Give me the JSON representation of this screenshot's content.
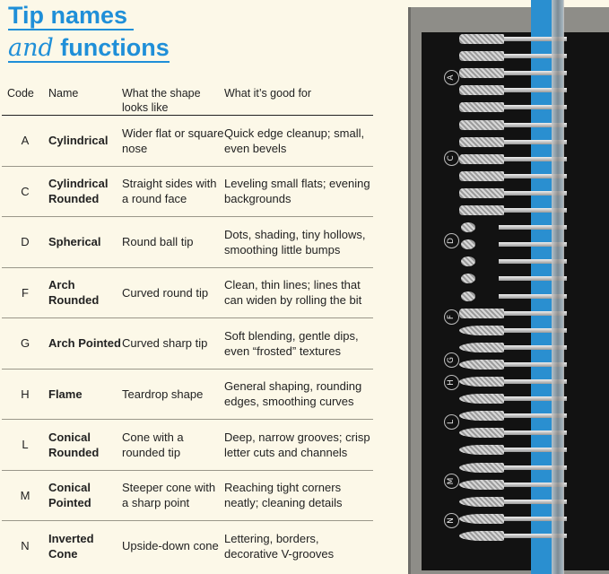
{
  "title": {
    "line1": "Tip names",
    "line2_italic": "and",
    "line2_bold": "functions"
  },
  "colors": {
    "accent": "#1f8fd8",
    "background": "#fcf8e8",
    "tray_stripe": "#2a8fd0"
  },
  "table": {
    "headers": {
      "code": "Code",
      "name": "Name",
      "shape": "What the shape looks like",
      "good_for": "What it’s good for"
    },
    "rows": [
      {
        "code": "A",
        "name": "Cylindrical",
        "shape": "Wider flat or square nose",
        "good_for": "Quick edge cleanup; small, even bevels"
      },
      {
        "code": "C",
        "name": "Cylindrical Rounded",
        "shape": "Straight sides with a round face",
        "good_for": "Leveling small flats; evening backgrounds"
      },
      {
        "code": "D",
        "name": "Spherical",
        "shape": "Round ball tip",
        "good_for": "Dots, shading, tiny hollows, smoothing little bumps"
      },
      {
        "code": "F",
        "name": "Arch Rounded",
        "shape": "Curved round tip",
        "good_for": "Clean, thin lines; lines that can widen by rolling the bit"
      },
      {
        "code": "G",
        "name": "Arch Pointed",
        "shape": "Curved sharp tip",
        "good_for": "Soft blending, gentle dips, even “frosted” textures"
      },
      {
        "code": "H",
        "name": "Flame",
        "shape": "Teardrop shape",
        "good_for": "General shaping, rounding edges, smoothing curves"
      },
      {
        "code": "L",
        "name": "Conical Rounded",
        "shape": "Cone with a rounded tip",
        "good_for": "Deep, narrow grooves; crisp letter cuts and channels"
      },
      {
        "code": "M",
        "name": "Conical Pointed",
        "shape": "Steeper cone with a sharp point",
        "good_for": "Reaching tight corners neatly; cleaning details"
      },
      {
        "code": "N",
        "name": "Inverted Cone",
        "shape": "Upside-down cone",
        "good_for": "Lettering, borders, decorative V-grooves"
      }
    ]
  },
  "tray": {
    "section_labels": [
      "A",
      "C",
      "D",
      "F",
      "G",
      "H",
      "L",
      "M",
      "N"
    ]
  }
}
